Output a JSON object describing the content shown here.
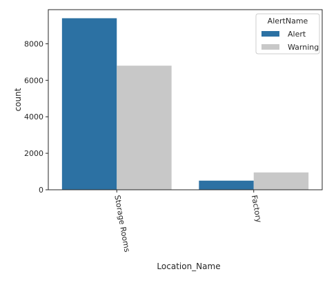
{
  "chart_data": {
    "type": "bar",
    "categories": [
      "Storage Rooms",
      "Factory"
    ],
    "series": [
      {
        "name": "Alert",
        "color": "#2c71a3",
        "values": [
          9400,
          500
        ]
      },
      {
        "name": "Warning",
        "color": "#c8c8c8",
        "values": [
          6800,
          950
        ]
      }
    ],
    "xlabel": "Location_Name",
    "ylabel": "count",
    "yticks": [
      0,
      2000,
      4000,
      6000,
      8000
    ],
    "ylim": [
      0,
      9870
    ],
    "legend": {
      "title": "AlertName",
      "placement": "top-right"
    },
    "grid": false
  }
}
